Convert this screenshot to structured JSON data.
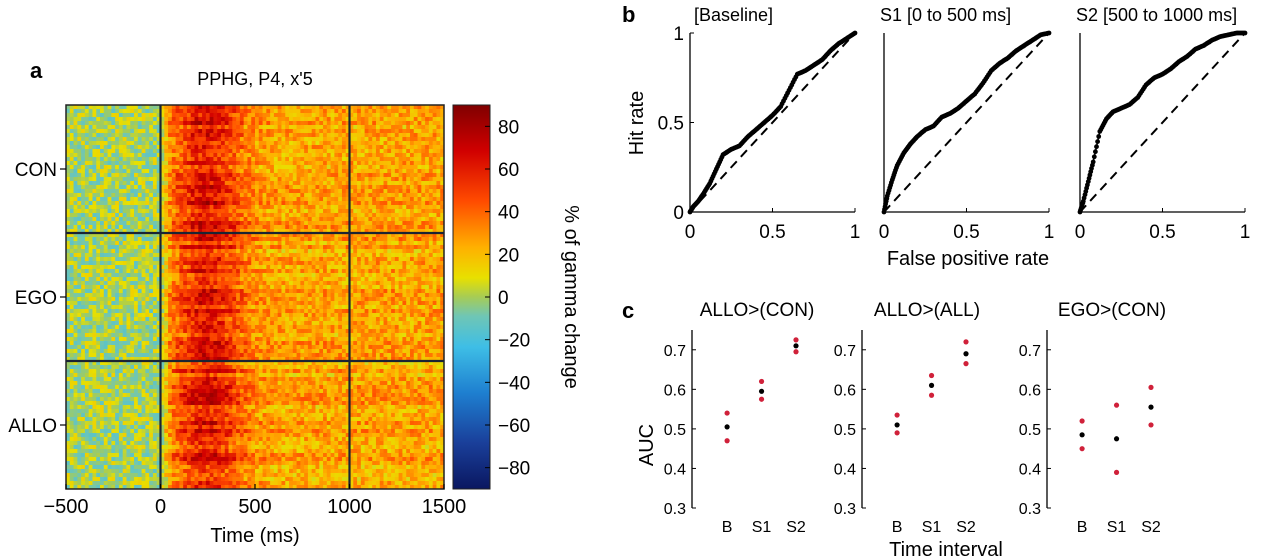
{
  "chart_data": [
    {
      "panel": "a",
      "type": "heatmap",
      "title": "PPHG, P4, x'5",
      "xlabel": "Time (ms)",
      "xlim": [
        -500,
        1500
      ],
      "xticks": [
        "-500",
        "0",
        "500",
        "1000",
        "1500"
      ],
      "row_groups": [
        "CON",
        "EGO",
        "ALLO"
      ],
      "event_lines_ms": [
        0,
        1000
      ],
      "colorbar": {
        "label": "% of gamma change",
        "ticks": [
          "80",
          "60",
          "40",
          "20",
          "0",
          "-20",
          "-40",
          "-60",
          "-80"
        ],
        "range": [
          -90,
          90
        ]
      },
      "description_values": {
        "baseline_level": 0,
        "peak_window_ms": [
          100,
          500
        ],
        "peak_level": 60,
        "sustained_level_ms_500_1500": 25
      }
    },
    {
      "panel": "b",
      "type": "line",
      "xlabel": "False positive rate",
      "ylabel": "Hit rate",
      "xlim": [
        0,
        1
      ],
      "ylim": [
        0,
        1
      ],
      "xticks": [
        "0",
        "0.5",
        "1"
      ],
      "yticks": [
        "0",
        "0.5",
        "1"
      ],
      "subplots": [
        {
          "title": "[Baseline]",
          "x": [
            0,
            0.02,
            0.05,
            0.08,
            0.12,
            0.16,
            0.2,
            0.25,
            0.3,
            0.35,
            0.4,
            0.45,
            0.5,
            0.55,
            0.6,
            0.65,
            0.7,
            0.75,
            0.8,
            0.85,
            0.9,
            0.95,
            1
          ],
          "y": [
            0,
            0.03,
            0.06,
            0.1,
            0.16,
            0.24,
            0.32,
            0.35,
            0.37,
            0.42,
            0.46,
            0.5,
            0.54,
            0.59,
            0.68,
            0.77,
            0.79,
            0.82,
            0.85,
            0.9,
            0.94,
            0.97,
            1
          ]
        },
        {
          "title": "S1 [0 to 500 ms]",
          "x": [
            0,
            0.02,
            0.05,
            0.08,
            0.12,
            0.16,
            0.2,
            0.25,
            0.3,
            0.35,
            0.4,
            0.45,
            0.5,
            0.55,
            0.6,
            0.65,
            0.7,
            0.75,
            0.8,
            0.85,
            0.9,
            0.95,
            1
          ],
          "y": [
            0,
            0.09,
            0.18,
            0.26,
            0.33,
            0.38,
            0.42,
            0.46,
            0.48,
            0.53,
            0.55,
            0.58,
            0.62,
            0.66,
            0.72,
            0.79,
            0.83,
            0.86,
            0.9,
            0.93,
            0.96,
            0.99,
            1
          ]
        },
        {
          "title": "S2 [500 to 1000 ms]",
          "x": [
            0,
            0.02,
            0.05,
            0.08,
            0.12,
            0.16,
            0.2,
            0.25,
            0.3,
            0.35,
            0.4,
            0.45,
            0.5,
            0.55,
            0.6,
            0.65,
            0.7,
            0.75,
            0.8,
            0.85,
            0.9,
            0.95,
            1
          ],
          "y": [
            0,
            0.06,
            0.17,
            0.28,
            0.45,
            0.52,
            0.56,
            0.58,
            0.6,
            0.64,
            0.71,
            0.75,
            0.77,
            0.8,
            0.84,
            0.87,
            0.91,
            0.93,
            0.96,
            0.98,
            0.99,
            1,
            1
          ]
        }
      ],
      "reference_line": "chance (dashed diagonal)"
    },
    {
      "panel": "c",
      "type": "scatter",
      "xlabel": "Time interval",
      "ylabel": "AUC",
      "categories": [
        "B",
        "S1",
        "S2"
      ],
      "ylim": [
        0.3,
        0.75
      ],
      "yticks": [
        "0.3",
        "0.4",
        "0.5",
        "0.6",
        "0.7"
      ],
      "subplots": [
        {
          "title": "ALLO>(CON)",
          "mean": [
            0.505,
            0.595,
            0.71
          ],
          "upper": [
            0.54,
            0.62,
            0.725
          ],
          "lower": [
            0.47,
            0.575,
            0.695
          ]
        },
        {
          "title": "ALLO>(ALL)",
          "mean": [
            0.51,
            0.61,
            0.69
          ],
          "upper": [
            0.535,
            0.635,
            0.72
          ],
          "lower": [
            0.49,
            0.585,
            0.665
          ]
        },
        {
          "title": "EGO>(CON)",
          "mean": [
            0.485,
            0.475,
            0.555
          ],
          "upper": [
            0.52,
            0.56,
            0.605
          ],
          "lower": [
            0.45,
            0.39,
            0.51
          ]
        }
      ],
      "colors": {
        "mean": "#000000",
        "bounds": "#d0213a"
      }
    }
  ],
  "panel_labels": [
    "a",
    "b",
    "c"
  ]
}
